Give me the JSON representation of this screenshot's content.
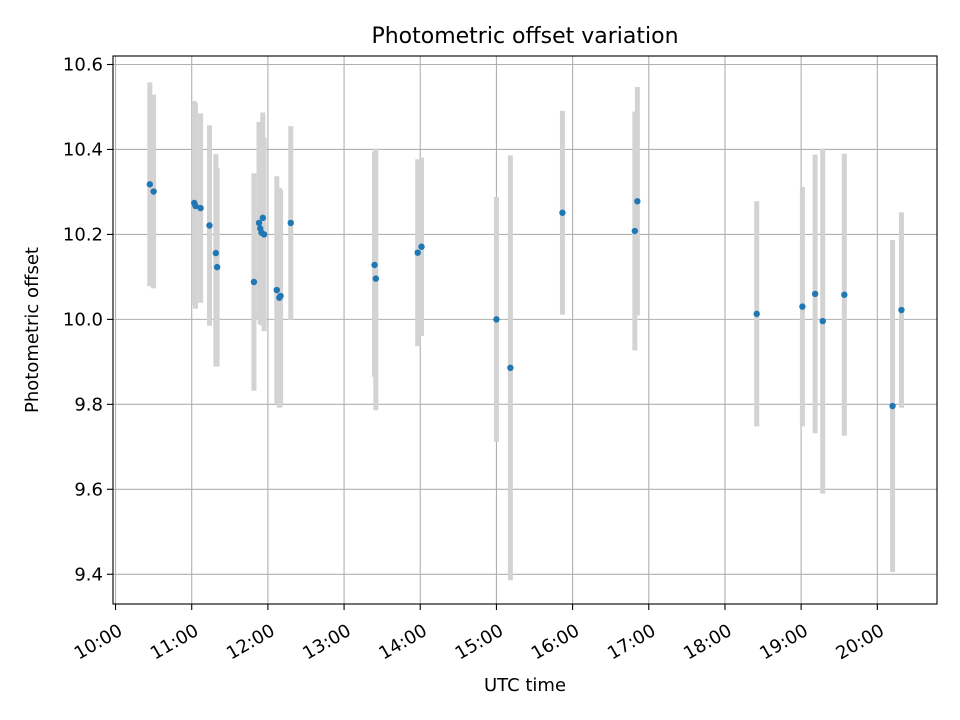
{
  "chart_data": {
    "type": "scatter",
    "title": "Photometric offset variation",
    "xlabel": "UTC time",
    "ylabel": "Photometric offset",
    "x_unit": "UTC time (HH:MM)",
    "xlim": [
      "09:58",
      "20:47"
    ],
    "ylim": [
      9.33,
      10.62
    ],
    "x_ticks": [
      "10:00",
      "11:00",
      "12:00",
      "13:00",
      "14:00",
      "15:00",
      "16:00",
      "17:00",
      "18:00",
      "19:00",
      "20:00"
    ],
    "y_ticks": [
      "9.4",
      "9.6",
      "9.8",
      "10.0",
      "10.2",
      "10.4",
      "10.6"
    ],
    "grid": true,
    "point_color": "#1f77b4",
    "errorbar_color": "#d3d3d3",
    "points": [
      {
        "x": "10:27",
        "y": 10.318,
        "ylo": 10.078,
        "yhi": 10.558
      },
      {
        "x": "10:30",
        "y": 10.301,
        "ylo": 10.073,
        "yhi": 10.529
      },
      {
        "x": "11:02",
        "y": 10.274,
        "ylo": 10.034,
        "yhi": 10.514
      },
      {
        "x": "11:03",
        "y": 10.267,
        "ylo": 10.025,
        "yhi": 10.509
      },
      {
        "x": "11:07",
        "y": 10.262,
        "ylo": 10.039,
        "yhi": 10.485
      },
      {
        "x": "11:14",
        "y": 10.221,
        "ylo": 9.985,
        "yhi": 10.457
      },
      {
        "x": "11:19",
        "y": 10.156,
        "ylo": 9.889,
        "yhi": 10.389
      },
      {
        "x": "11:20",
        "y": 10.123,
        "ylo": 9.889,
        "yhi": 10.357
      },
      {
        "x": "11:49",
        "y": 10.088,
        "ylo": 9.832,
        "yhi": 10.344
      },
      {
        "x": "11:53",
        "y": 10.227,
        "ylo": 9.999,
        "yhi": 10.465
      },
      {
        "x": "11:54",
        "y": 10.214,
        "ylo": 9.989,
        "yhi": 10.439
      },
      {
        "x": "11:55",
        "y": 10.204,
        "ylo": 9.986,
        "yhi": 10.449
      },
      {
        "x": "11:56",
        "y": 10.239,
        "ylo": 9.991,
        "yhi": 10.487
      },
      {
        "x": "11:57",
        "y": 10.2,
        "ylo": 9.972,
        "yhi": 10.428
      },
      {
        "x": "12:07",
        "y": 10.069,
        "ylo": 9.801,
        "yhi": 10.337
      },
      {
        "x": "12:09",
        "y": 10.051,
        "ylo": 9.792,
        "yhi": 10.31
      },
      {
        "x": "12:10",
        "y": 10.055,
        "ylo": 9.795,
        "yhi": 10.305
      },
      {
        "x": "12:18",
        "y": 10.227,
        "ylo": 9.999,
        "yhi": 10.455
      },
      {
        "x": "13:24",
        "y": 10.128,
        "ylo": 9.865,
        "yhi": 10.395
      },
      {
        "x": "13:25",
        "y": 10.096,
        "ylo": 9.786,
        "yhi": 10.402
      },
      {
        "x": "13:58",
        "y": 10.157,
        "ylo": 9.937,
        "yhi": 10.377
      },
      {
        "x": "14:01",
        "y": 10.171,
        "ylo": 9.961,
        "yhi": 10.381
      },
      {
        "x": "15:00",
        "y": 10.0,
        "ylo": 9.712,
        "yhi": 10.288
      },
      {
        "x": "15:11",
        "y": 9.886,
        "ylo": 9.386,
        "yhi": 10.386
      },
      {
        "x": "15:52",
        "y": 10.251,
        "ylo": 10.011,
        "yhi": 10.491
      },
      {
        "x": "16:49",
        "y": 10.208,
        "ylo": 9.927,
        "yhi": 10.489
      },
      {
        "x": "16:51",
        "y": 10.278,
        "ylo": 10.009,
        "yhi": 10.547
      },
      {
        "x": "18:25",
        "y": 10.013,
        "ylo": 9.748,
        "yhi": 10.278
      },
      {
        "x": "19:01",
        "y": 10.03,
        "ylo": 9.748,
        "yhi": 10.312
      },
      {
        "x": "19:11",
        "y": 10.06,
        "ylo": 9.732,
        "yhi": 10.388
      },
      {
        "x": "19:17",
        "y": 9.996,
        "ylo": 9.59,
        "yhi": 10.402
      },
      {
        "x": "19:34",
        "y": 10.058,
        "ylo": 9.726,
        "yhi": 10.39
      },
      {
        "x": "20:12",
        "y": 9.796,
        "ylo": 9.405,
        "yhi": 10.187
      },
      {
        "x": "20:19",
        "y": 10.022,
        "ylo": 9.792,
        "yhi": 10.252
      }
    ]
  }
}
